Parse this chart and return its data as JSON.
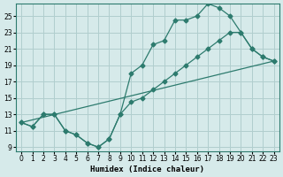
{
  "xlabel": "Humidex (Indice chaleur)",
  "ylabel": "",
  "bg_color": "#d6eaea",
  "line_color": "#2d7b6e",
  "grid_color": "#b0cece",
  "xlim": [
    -0.5,
    23.5
  ],
  "ylim": [
    8.5,
    26.5
  ],
  "xticks": [
    0,
    1,
    2,
    3,
    4,
    5,
    6,
    7,
    8,
    9,
    10,
    11,
    12,
    13,
    14,
    15,
    16,
    17,
    18,
    19,
    20,
    21,
    22,
    23
  ],
  "yticks": [
    9,
    11,
    13,
    15,
    17,
    19,
    21,
    23,
    25
  ],
  "line1_x": [
    0,
    1,
    2,
    3,
    4,
    5,
    6,
    7,
    8,
    9,
    10,
    11,
    12,
    13,
    14,
    15,
    16,
    17,
    18,
    19,
    20,
    21,
    22,
    23
  ],
  "line1_y": [
    12,
    11.5,
    13,
    13,
    11,
    10.5,
    9.5,
    9,
    10,
    13,
    18,
    19,
    21.5,
    22,
    24.5,
    24.5,
    25,
    26.5,
    26,
    25,
    23,
    21,
    20,
    19.5
  ],
  "line2_x": [
    0,
    1,
    2,
    3,
    4,
    5,
    6,
    7,
    8,
    9,
    10,
    11,
    12,
    13,
    14,
    15,
    16,
    17,
    18,
    19,
    20,
    21,
    22,
    23
  ],
  "line2_y": [
    12,
    11.5,
    13,
    13,
    11,
    10.5,
    9.5,
    9,
    10,
    13,
    14.5,
    15,
    16,
    17,
    18,
    19,
    20,
    21,
    22,
    23,
    23,
    21,
    20,
    19.5
  ],
  "line3_x": [
    0,
    23
  ],
  "line3_y": [
    12,
    19.5
  ]
}
